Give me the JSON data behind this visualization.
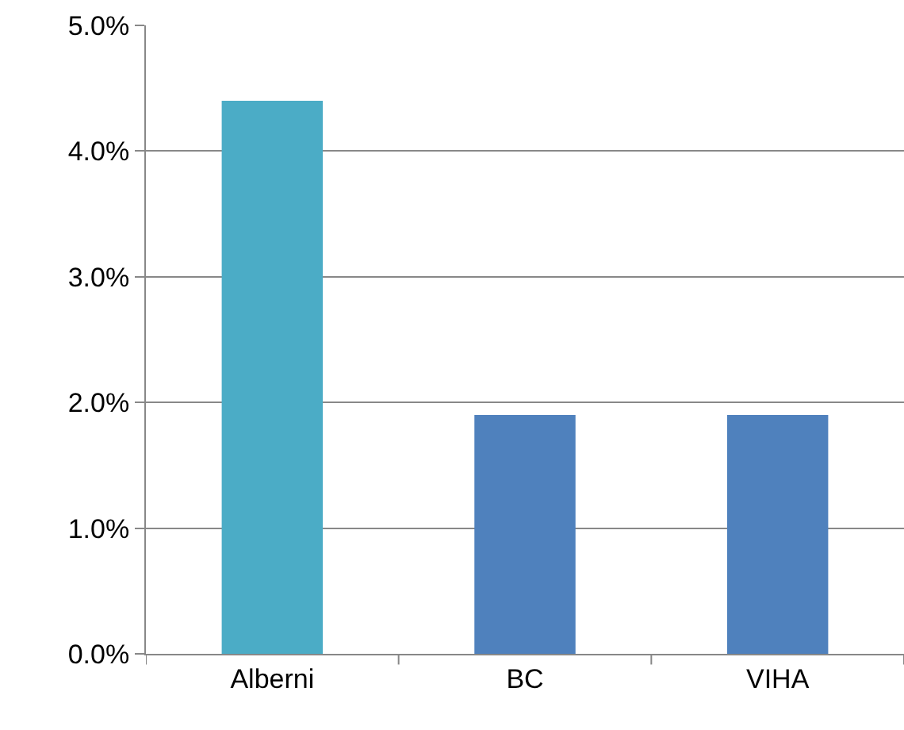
{
  "chart_data": {
    "type": "bar",
    "categories": [
      "Alberni",
      "BC",
      "VIHA"
    ],
    "values": [
      4.4,
      1.9,
      1.9
    ],
    "colors": [
      "#4bacc6",
      "#4f81bd",
      "#4f81bd"
    ],
    "ylim": [
      0,
      5
    ],
    "yticks": [
      {
        "value": 0,
        "label": "0.0%"
      },
      {
        "value": 1,
        "label": "1.0%"
      },
      {
        "value": 2,
        "label": "2.0%"
      },
      {
        "value": 3,
        "label": "3.0%"
      },
      {
        "value": 4,
        "label": "4.0%"
      },
      {
        "value": 5,
        "label": "5.0%"
      }
    ],
    "grid": "y"
  }
}
